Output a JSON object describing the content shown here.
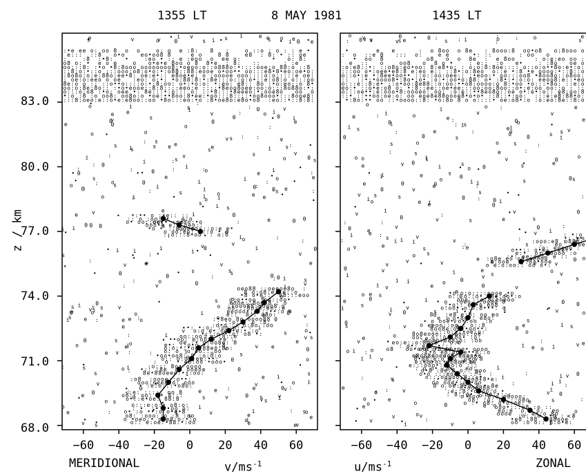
{
  "header": {
    "left_time": "1355 LT",
    "date": "8 MAY  1981",
    "right_time": "1435 LT"
  },
  "chart_data": [
    {
      "type": "scatter",
      "panel": "left",
      "title_label": "MERIDIONAL",
      "xlabel": "v/ms",
      "xlabel_sup": "-1",
      "ylabel": "z / km",
      "xlim": [
        -72,
        72
      ],
      "ylim": [
        67.8,
        86.2
      ],
      "xticks": [
        -60,
        -40,
        -20,
        0,
        20,
        40,
        60
      ],
      "yticks": [
        68.0,
        71.0,
        74.0,
        77.0,
        80.0,
        83.0
      ],
      "ytick_labels": [
        "68.0",
        "71.0",
        "74.0",
        "77.0",
        "80.0",
        "83.0"
      ],
      "band": [
        83.1,
        85.4
      ],
      "profile": [
        {
          "x": -15,
          "y": 68.3
        },
        {
          "x": -15,
          "y": 68.8
        },
        {
          "x": -18,
          "y": 69.4
        },
        {
          "x": -12,
          "y": 70.0
        },
        {
          "x": -6,
          "y": 70.6
        },
        {
          "x": 1,
          "y": 71.1
        },
        {
          "x": 5,
          "y": 71.6
        },
        {
          "x": 12,
          "y": 72.0
        },
        {
          "x": 22,
          "y": 72.4
        },
        {
          "x": 30,
          "y": 72.8
        },
        {
          "x": 38,
          "y": 73.3
        },
        {
          "x": 42,
          "y": 73.7
        },
        {
          "x": 50,
          "y": 74.2
        }
      ],
      "profile_upper": [
        {
          "x": -15,
          "y": 77.6
        },
        {
          "x": -6,
          "y": 77.3
        },
        {
          "x": 6,
          "y": 77.0
        }
      ]
    },
    {
      "type": "scatter",
      "panel": "right",
      "title_label": "ZONAL",
      "xlabel": "u/ms",
      "xlabel_sup": "-1",
      "xlim": [
        -72,
        72
      ],
      "ylim": [
        67.8,
        86.2
      ],
      "xticks": [
        -60,
        -40,
        -20,
        0,
        20,
        40,
        60
      ],
      "band": [
        83.1,
        85.4
      ],
      "profile": [
        {
          "x": 44,
          "y": 68.3
        },
        {
          "x": 35,
          "y": 68.7
        },
        {
          "x": 20,
          "y": 69.2
        },
        {
          "x": 6,
          "y": 69.6
        },
        {
          "x": 0,
          "y": 70.0
        },
        {
          "x": -6,
          "y": 70.4
        },
        {
          "x": -12,
          "y": 70.8
        },
        {
          "x": -10,
          "y": 71.1
        },
        {
          "x": -4,
          "y": 71.4
        },
        {
          "x": -22,
          "y": 71.7
        },
        {
          "x": -10,
          "y": 72.1
        },
        {
          "x": -4,
          "y": 72.5
        },
        {
          "x": 0,
          "y": 73.0
        },
        {
          "x": 3,
          "y": 73.6
        },
        {
          "x": 12,
          "y": 74.0
        }
      ],
      "profile_upper": [
        {
          "x": 30,
          "y": 75.6
        },
        {
          "x": 45,
          "y": 76.0
        },
        {
          "x": 60,
          "y": 76.4
        },
        {
          "x": 72,
          "y": 76.7
        }
      ]
    }
  ]
}
